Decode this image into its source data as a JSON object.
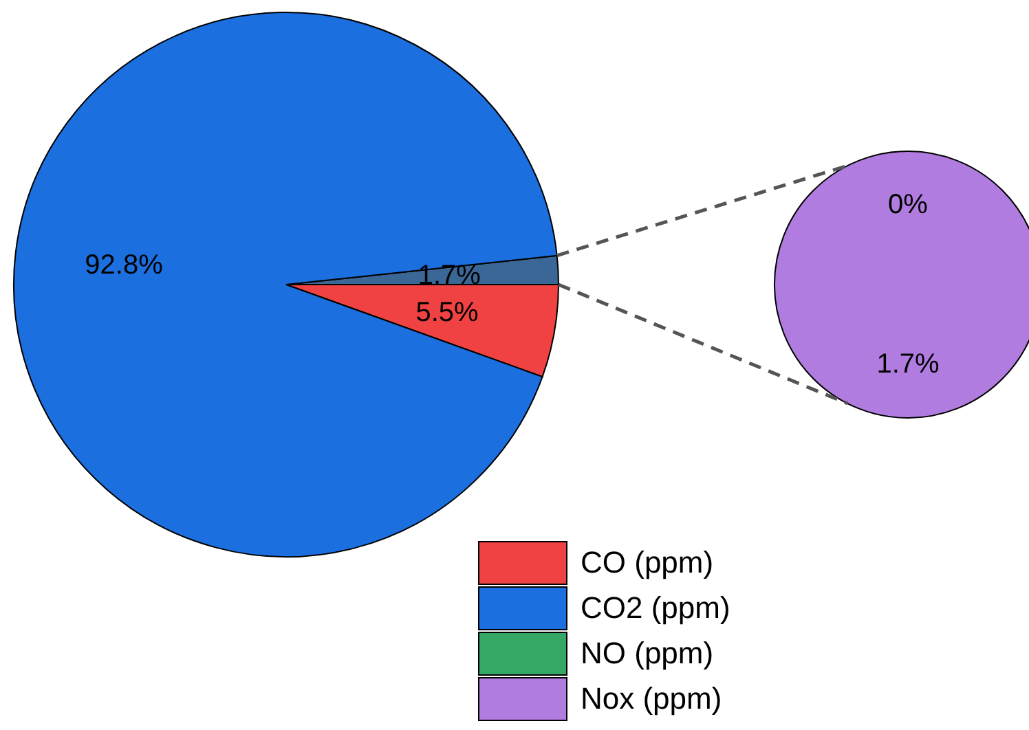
{
  "chart_data": [
    {
      "type": "pie",
      "categories": [
        null,
        "CO (ppm)",
        "CO2 (ppm)"
      ],
      "values": [
        1.7,
        5.5,
        92.8
      ],
      "value_labels": [
        "1.7%",
        "5.5%",
        "92.8%"
      ],
      "colors": [
        "#3a6796",
        "#f04242",
        "#1b6fdf"
      ],
      "legend": "bottom right"
    },
    {
      "type": "pie",
      "categories": [
        "NO (ppm)",
        "Nox (ppm)"
      ],
      "values": [
        0,
        1.7
      ],
      "value_labels": [
        "0%",
        "1.7%"
      ],
      "colors": [
        "#36a866",
        "#b07ce0"
      ]
    }
  ]
}
